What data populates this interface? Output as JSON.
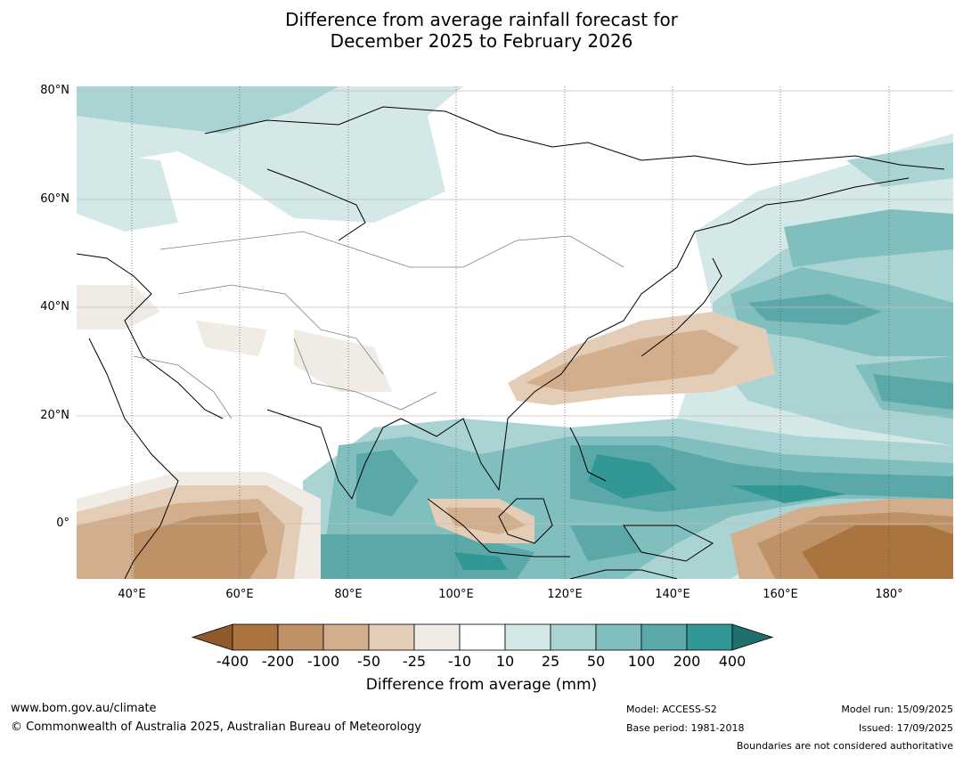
{
  "title_line1": "Difference from average rainfall forecast for",
  "title_line2": "December 2025 to February 2026",
  "map": {
    "lat_labels": [
      "80°N",
      "60°N",
      "40°N",
      "20°N",
      "0°"
    ],
    "lon_labels": [
      "40°E",
      "60°E",
      "80°E",
      "100°E",
      "120°E",
      "140°E",
      "160°E",
      "180°"
    ],
    "extent": {
      "lon_min": 30,
      "lon_max": 190,
      "lat_min": -10,
      "lat_max": 80
    }
  },
  "colorbar": {
    "title": "Difference from average (mm)",
    "ticks": [
      "-400",
      "-200",
      "-100",
      "-50",
      "-25",
      "-10",
      "10",
      "25",
      "50",
      "100",
      "200",
      "400"
    ],
    "colors": [
      "#8f5a2a",
      "#a9743e",
      "#bf9167",
      "#d2ae8c",
      "#e4cdb6",
      "#f0ebe4",
      "#ffffff",
      "#d4e8e7",
      "#a9d4d3",
      "#80bfbe",
      "#5aa9a8",
      "#329896",
      "#1f6f6c"
    ]
  },
  "footer": {
    "website": "www.bom.gov.au/climate",
    "copyright": "© Commonwealth of Australia 2025, Australian Bureau of Meteorology",
    "model": "Model: ACCESS-S2",
    "base_period": "Base period: 1981-2018",
    "model_run": "Model run: 15/09/2025",
    "issued": "Issued: 17/09/2025",
    "disclaimer": "Boundaries are not considered authoritative"
  }
}
